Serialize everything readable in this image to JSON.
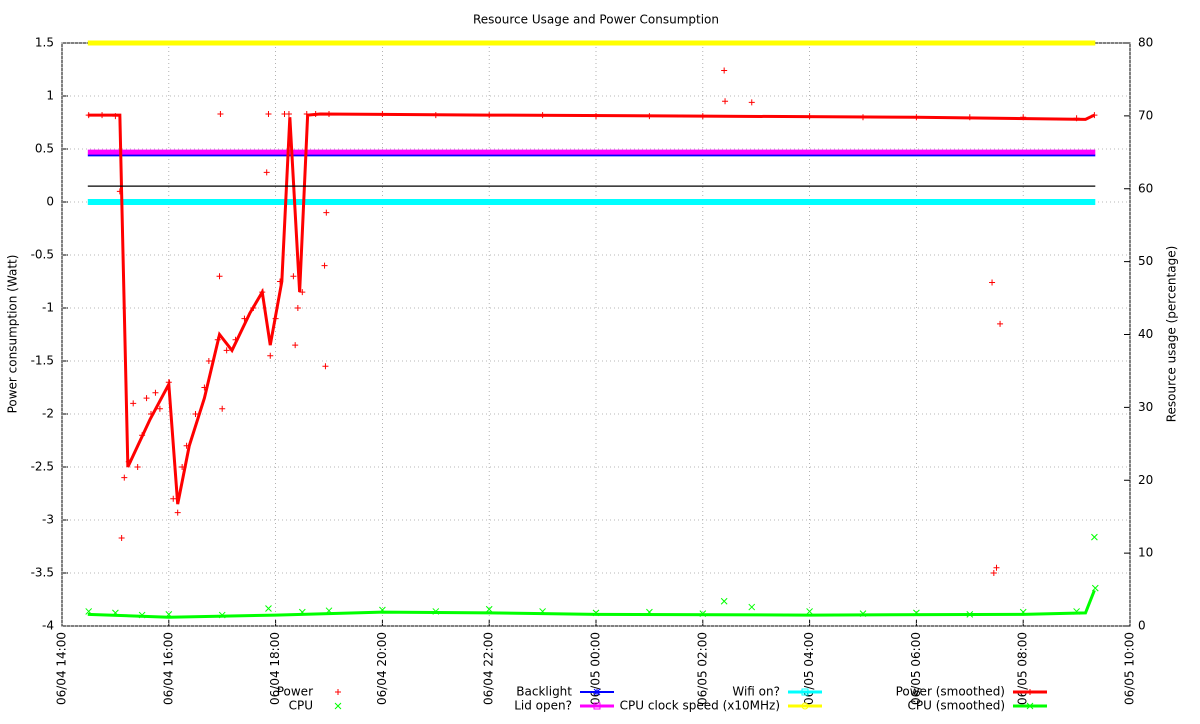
{
  "chart_data": {
    "type": "scatter",
    "title": "Resource Usage and Power Consumption",
    "ylabel": "Power consumption (Watt)",
    "y2label": "Resource usage (percentage)",
    "xlim": [
      "06/04 14:00",
      "06/05 10:00"
    ],
    "xticks": [
      "06/04 14:00",
      "06/04 16:00",
      "06/04 18:00",
      "06/04 20:00",
      "06/04 22:00",
      "06/05 00:00",
      "06/05 02:00",
      "06/05 04:00",
      "06/05 06:00",
      "06/05 08:00",
      "06/05 10:00"
    ],
    "ylim": [
      -4,
      1.5
    ],
    "yticks": [
      -4,
      -3.5,
      -3,
      -2.5,
      -2,
      -1.5,
      -1,
      -0.5,
      0,
      0.5,
      1,
      1.5
    ],
    "y2lim": [
      0,
      80
    ],
    "y2ticks": [
      0,
      10,
      20,
      30,
      40,
      50,
      60,
      70,
      80
    ],
    "grid": true,
    "legend": "bottom",
    "series": [
      {
        "name": "Power",
        "color": "#ff0000",
        "style": "points",
        "marker": "plus",
        "axis": "y",
        "x": [
          "06/04 14:30",
          "06/04 14:45",
          "06/04 15:00",
          "06/04 15:05",
          "06/04 15:07",
          "06/04 15:10",
          "06/04 15:15",
          "06/04 15:20",
          "06/04 15:25",
          "06/04 15:30",
          "06/04 15:35",
          "06/04 15:40",
          "06/04 15:45",
          "06/04 15:50",
          "06/04 16:00",
          "06/04 16:05",
          "06/04 16:10",
          "06/04 16:15",
          "06/04 16:20",
          "06/04 16:30",
          "06/04 16:40",
          "06/04 16:45",
          "06/04 16:55",
          "06/04 16:57",
          "06/04 16:58",
          "06/04 17:00",
          "06/04 17:05",
          "06/04 17:15",
          "06/04 17:25",
          "06/04 17:35",
          "06/04 17:45",
          "06/04 17:50",
          "06/04 17:52",
          "06/04 17:54",
          "06/04 18:00",
          "06/04 18:05",
          "06/04 18:10",
          "06/04 18:15",
          "06/04 18:20",
          "06/04 18:22",
          "06/04 18:25",
          "06/04 18:30",
          "06/04 18:35",
          "06/04 18:45",
          "06/04 18:55",
          "06/04 18:56",
          "06/04 18:57",
          "06/04 19:00",
          "06/04 20:00",
          "06/04 21:00",
          "06/04 22:00",
          "06/04 23:00",
          "06/05 00:00",
          "06/05 01:00",
          "06/05 02:00",
          "06/05 02:24",
          "06/05 02:25",
          "06/05 02:55",
          "06/05 04:00",
          "06/05 05:00",
          "06/05 06:00",
          "06/05 07:00",
          "06/05 07:25",
          "06/05 07:27",
          "06/05 07:30",
          "06/05 07:34",
          "06/05 08:00",
          "06/05 09:00",
          "06/05 09:20"
        ],
        "values": [
          0.82,
          0.82,
          0.81,
          0.1,
          -3.17,
          -2.6,
          -2.45,
          -1.9,
          -2.5,
          -2.2,
          -1.85,
          -2.0,
          -1.8,
          -1.95,
          -1.7,
          -2.8,
          -2.93,
          -2.5,
          -2.3,
          -2.0,
          -1.75,
          -1.5,
          -1.3,
          -0.7,
          0.83,
          -1.95,
          -1.4,
          -1.3,
          -1.1,
          -1.0,
          -0.85,
          0.28,
          0.83,
          -1.45,
          -1.1,
          -0.75,
          0.83,
          0.83,
          -0.7,
          -1.35,
          -1.0,
          -0.85,
          0.83,
          0.83,
          -0.6,
          -1.55,
          -0.1,
          0.83,
          0.83,
          0.82,
          0.82,
          0.82,
          0.81,
          0.81,
          0.81,
          1.24,
          0.95,
          0.94,
          0.81,
          0.8,
          0.8,
          0.8,
          -0.76,
          -3.5,
          -3.45,
          -1.15,
          0.8,
          0.79,
          0.82
        ]
      },
      {
        "name": "CPU",
        "color": "#00ff00",
        "style": "points",
        "marker": "cross",
        "axis": "y2",
        "x": [
          "06/04 14:30",
          "06/04 15:00",
          "06/04 15:30",
          "06/04 16:00",
          "06/04 17:00",
          "06/04 17:52",
          "06/04 18:30",
          "06/04 19:00",
          "06/04 20:00",
          "06/04 21:00",
          "06/04 22:00",
          "06/04 23:00",
          "06/05 00:00",
          "06/05 01:00",
          "06/05 02:00",
          "06/05 02:24",
          "06/05 02:55",
          "06/05 04:00",
          "06/05 05:00",
          "06/05 06:00",
          "06/05 07:00",
          "06/05 08:00",
          "06/05 09:00",
          "06/05 09:20",
          "06/05 09:21"
        ],
        "values": [
          2.0,
          1.8,
          1.5,
          1.6,
          1.5,
          2.4,
          1.9,
          2.1,
          2.2,
          2.0,
          2.3,
          2.0,
          1.8,
          1.9,
          1.7,
          3.4,
          2.6,
          2.0,
          1.7,
          1.8,
          1.6,
          1.9,
          2.0,
          12.2,
          5.2
        ]
      },
      {
        "name": "Backlight",
        "color": "#0000ff",
        "style": "lines",
        "marker": "star",
        "axis": "y",
        "line_width": 2,
        "x": [
          "06/04 14:29",
          "06/05 09:21"
        ],
        "values": [
          0.44,
          0.44
        ]
      },
      {
        "name": "Lid open?",
        "color": "#ff00ff",
        "style": "lines",
        "marker": "square",
        "axis": "y",
        "line_width": 5,
        "x": [
          "06/04 14:29",
          "06/05 09:21"
        ],
        "values": [
          0.47,
          0.47
        ]
      },
      {
        "name": "Wifi on?",
        "color": "#00ffff",
        "style": "lines",
        "marker": "square",
        "axis": "y",
        "line_width": 6,
        "x": [
          "06/04 14:29",
          "06/05 09:21"
        ],
        "values": [
          0,
          0
        ]
      },
      {
        "name": "CPU clock speed (x10MHz)",
        "color": "#ffff00",
        "style": "lines",
        "marker": "circle",
        "axis": "y2",
        "line_width": 5,
        "x": [
          "06/04 14:29",
          "06/05 09:21"
        ],
        "values": [
          80,
          80
        ]
      },
      {
        "name": "Power (smoothed)",
        "color": "#ff0000",
        "style": "linespoints",
        "marker": "plus",
        "axis": "y",
        "line_width": 3,
        "x": [
          "06/04 14:29",
          "06/04 15:05",
          "06/04 15:14",
          "06/04 15:39",
          "06/04 16:00",
          "06/04 16:10",
          "06/04 16:23",
          "06/04 16:40",
          "06/04 16:57",
          "06/04 17:11",
          "06/04 17:31",
          "06/04 17:45",
          "06/04 17:54",
          "06/04 18:07",
          "06/04 18:16",
          "06/04 18:27",
          "06/04 18:36",
          "06/04 18:50",
          "06/04 22:00",
          "06/05 02:00",
          "06/05 06:00",
          "06/05 09:10",
          "06/05 09:20"
        ],
        "values": [
          0.82,
          0.82,
          -2.5,
          -2.05,
          -1.72,
          -2.85,
          -2.3,
          -1.85,
          -1.25,
          -1.4,
          -1.05,
          -0.85,
          -1.35,
          -0.75,
          0.8,
          -0.85,
          0.82,
          0.83,
          0.82,
          0.81,
          0.8,
          0.78,
          0.82
        ]
      },
      {
        "name": "CPU (smoothed)",
        "color": "#00ff00",
        "style": "linespoints",
        "marker": "cross",
        "axis": "y2",
        "line_width": 3,
        "x": [
          "06/04 14:29",
          "06/04 16:00",
          "06/04 18:00",
          "06/04 20:00",
          "06/04 22:00",
          "06/05 00:00",
          "06/05 04:00",
          "06/05 08:00",
          "06/05 09:10",
          "06/05 09:20"
        ],
        "values": [
          1.6,
          1.2,
          1.5,
          1.9,
          1.8,
          1.6,
          1.5,
          1.6,
          1.8,
          4.9
        ]
      },
      {
        "color": "#000000",
        "style": "lines",
        "axis": "y",
        "line_width": 1.2,
        "x": [
          "06/04 14:29",
          "06/05 09:21"
        ],
        "values": [
          0.15,
          0.15
        ]
      }
    ]
  }
}
